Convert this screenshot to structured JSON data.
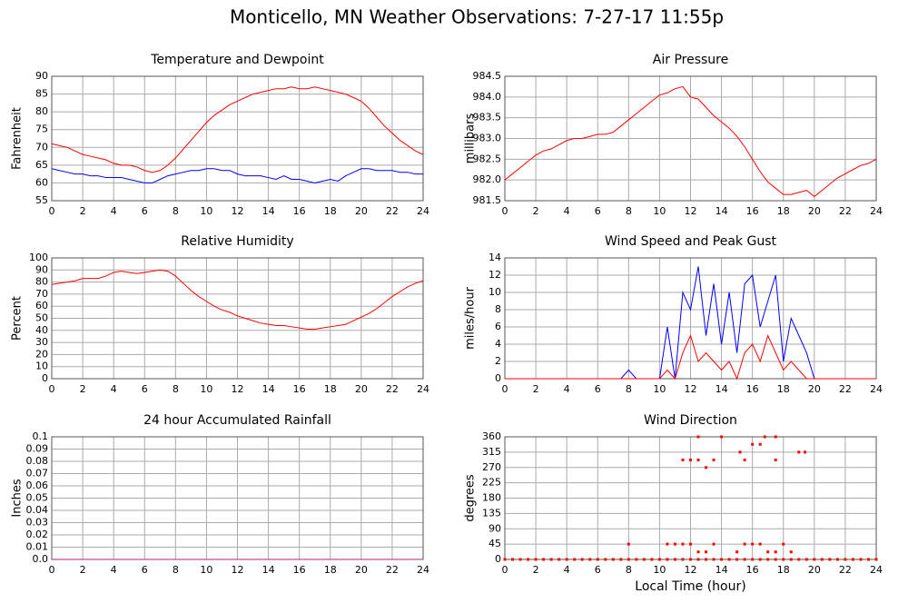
{
  "title": "Monticello, MN Weather Observations: 7-27-17 11:55p",
  "chart_data": [
    {
      "type": "line",
      "title": "Temperature and Dewpoint",
      "ylabel": "Fahrenheit",
      "xlim": [
        0,
        24
      ],
      "xticks": [
        0,
        2,
        4,
        6,
        8,
        10,
        12,
        14,
        16,
        18,
        20,
        22,
        24
      ],
      "ylim": [
        55,
        90
      ],
      "yticks": [
        55,
        60,
        65,
        70,
        75,
        80,
        85,
        90
      ],
      "grid": true,
      "x": [
        0,
        0.5,
        1,
        1.5,
        2,
        2.5,
        3,
        3.5,
        4,
        4.5,
        5,
        5.5,
        6,
        6.5,
        7,
        7.5,
        8,
        8.5,
        9,
        9.5,
        10,
        10.5,
        11,
        11.5,
        12,
        12.5,
        13,
        13.5,
        14,
        14.5,
        15,
        15.5,
        16,
        16.5,
        17,
        17.5,
        18,
        18.5,
        19,
        19.5,
        20,
        20.5,
        21,
        21.5,
        22,
        22.5,
        23,
        23.5,
        24
      ],
      "series": [
        {
          "color": "#ff0000",
          "values": [
            71,
            70.5,
            70,
            69,
            68,
            67.5,
            67,
            66.5,
            65.5,
            65,
            65,
            64.5,
            63.5,
            63,
            63.5,
            65,
            67,
            69.5,
            72,
            74.5,
            77,
            79,
            80.5,
            82,
            83,
            84,
            85,
            85.5,
            86,
            86.5,
            86.5,
            87,
            86.5,
            86.5,
            87,
            86.5,
            86,
            85.5,
            85,
            84,
            83,
            81,
            78.5,
            76,
            74,
            72,
            70.5,
            69,
            68
          ]
        },
        {
          "color": "#0000ff",
          "values": [
            64,
            63.5,
            63,
            62.5,
            62.5,
            62,
            62,
            61.5,
            61.5,
            61.5,
            61,
            60.5,
            60,
            60,
            61,
            62,
            62.5,
            63,
            63.5,
            63.5,
            64,
            64,
            63.5,
            63.5,
            62.5,
            62,
            62,
            62,
            61.5,
            61,
            62,
            61,
            61,
            60.5,
            60,
            60.5,
            61,
            60.5,
            62,
            63,
            64,
            64,
            63.5,
            63.5,
            63.5,
            63,
            63,
            62.5,
            62.5
          ]
        }
      ]
    },
    {
      "type": "line",
      "title": "Air Pressure",
      "ylabel": "millibars",
      "xlim": [
        0,
        24
      ],
      "xticks": [
        0,
        2,
        4,
        6,
        8,
        10,
        12,
        14,
        16,
        18,
        20,
        22,
        24
      ],
      "ylim": [
        981.5,
        984.5
      ],
      "yticks": [
        981.5,
        {
          "value": 982,
          "label": "982.0"
        },
        982.5,
        {
          "value": 983,
          "label": "983.0"
        },
        983.5,
        {
          "value": 984,
          "label": "984.0"
        },
        984.5
      ],
      "grid": true,
      "x": [
        0,
        0.5,
        1,
        1.5,
        2,
        2.5,
        3,
        3.5,
        4,
        4.5,
        5,
        5.5,
        6,
        6.5,
        7,
        7.5,
        8,
        8.5,
        9,
        9.5,
        10,
        10.5,
        11,
        11.5,
        12,
        12.5,
        13,
        13.5,
        14,
        14.5,
        15,
        15.5,
        16,
        16.5,
        17,
        17.5,
        18,
        18.5,
        19,
        19.5,
        20,
        20.5,
        21,
        21.5,
        22,
        22.5,
        23,
        23.5,
        24
      ],
      "series": [
        {
          "color": "#ff0000",
          "values": [
            982.0,
            982.15,
            982.3,
            982.45,
            982.6,
            982.7,
            982.75,
            982.85,
            982.95,
            983.0,
            983.0,
            983.05,
            983.1,
            983.1,
            983.15,
            983.3,
            983.45,
            983.6,
            983.75,
            983.9,
            984.05,
            984.1,
            984.2,
            984.25,
            984.0,
            983.95,
            983.75,
            983.55,
            983.4,
            983.25,
            983.05,
            982.8,
            982.5,
            982.2,
            981.95,
            981.8,
            981.65,
            981.65,
            981.7,
            981.75,
            981.6,
            981.75,
            981.9,
            982.05,
            982.15,
            982.25,
            982.35,
            982.4,
            982.5
          ]
        }
      ]
    },
    {
      "type": "line",
      "title": "Relative Humidity",
      "ylabel": "Percent",
      "xlim": [
        0,
        24
      ],
      "xticks": [
        0,
        2,
        4,
        6,
        8,
        10,
        12,
        14,
        16,
        18,
        20,
        22,
        24
      ],
      "ylim": [
        0,
        100
      ],
      "yticks": [
        0,
        10,
        20,
        30,
        40,
        50,
        60,
        70,
        80,
        90,
        100
      ],
      "grid": true,
      "x": [
        0,
        0.5,
        1,
        1.5,
        2,
        2.5,
        3,
        3.5,
        4,
        4.5,
        5,
        5.5,
        6,
        6.5,
        7,
        7.5,
        8,
        8.5,
        9,
        9.5,
        10,
        10.5,
        11,
        11.5,
        12,
        12.5,
        13,
        13.5,
        14,
        14.5,
        15,
        15.5,
        16,
        16.5,
        17,
        17.5,
        18,
        18.5,
        19,
        19.5,
        20,
        20.5,
        21,
        21.5,
        22,
        22.5,
        23,
        23.5,
        24
      ],
      "series": [
        {
          "color": "#ff0000",
          "values": [
            78,
            79,
            80,
            81,
            83,
            83,
            83,
            85,
            88,
            89,
            88,
            87,
            88,
            89,
            90,
            89,
            85,
            79,
            73,
            68,
            64,
            60,
            57,
            55,
            52,
            50,
            48,
            46,
            45,
            44,
            44,
            43,
            42,
            41,
            41,
            42,
            43,
            44,
            45,
            48,
            51,
            54,
            58,
            63,
            68,
            72,
            76,
            79,
            81
          ]
        }
      ]
    },
    {
      "type": "line",
      "title": "Wind Speed and Peak Gust",
      "ylabel": "miles/hour",
      "xlim": [
        0,
        24
      ],
      "xticks": [
        0,
        2,
        4,
        6,
        8,
        10,
        12,
        14,
        16,
        18,
        20,
        22,
        24
      ],
      "ylim": [
        0,
        14
      ],
      "yticks": [
        0,
        2,
        4,
        6,
        8,
        10,
        12,
        14
      ],
      "grid": true,
      "x": [
        0,
        0.5,
        1,
        1.5,
        2,
        2.5,
        3,
        3.5,
        4,
        4.5,
        5,
        5.5,
        6,
        6.5,
        7,
        7.5,
        8,
        8.5,
        9,
        9.5,
        10,
        10.5,
        11,
        11.5,
        12,
        12.5,
        13,
        13.5,
        14,
        14.5,
        15,
        15.5,
        16,
        16.5,
        17,
        17.5,
        18,
        18.5,
        19,
        19.5,
        20,
        20.5,
        21,
        21.5,
        22,
        22.5,
        23,
        23.5,
        24
      ],
      "series": [
        {
          "color": "#0000ff",
          "values": [
            0,
            0,
            0,
            0,
            0,
            0,
            0,
            0,
            0,
            0,
            0,
            0,
            0,
            0,
            0,
            0,
            1,
            0,
            0,
            0,
            0,
            6,
            0,
            10,
            8,
            13,
            5,
            11,
            4,
            10,
            3,
            11,
            12,
            6,
            9,
            12,
            2,
            7,
            5,
            3,
            0,
            0,
            0,
            0,
            0,
            0,
            0,
            0,
            0
          ]
        },
        {
          "color": "#ff0000",
          "values": [
            0,
            0,
            0,
            0,
            0,
            0,
            0,
            0,
            0,
            0,
            0,
            0,
            0,
            0,
            0,
            0,
            0,
            0,
            0,
            0,
            0,
            1,
            0,
            3,
            5,
            2,
            3,
            2,
            1,
            2,
            0,
            3,
            4,
            2,
            5,
            3,
            1,
            2,
            1,
            0,
            0,
            0,
            0,
            0,
            0,
            0,
            0,
            0,
            0
          ]
        }
      ]
    },
    {
      "type": "line",
      "title": "24 hour Accumulated Rainfall",
      "ylabel": "Inches",
      "xlim": [
        0,
        24
      ],
      "xticks": [
        0,
        2,
        4,
        6,
        8,
        10,
        12,
        14,
        16,
        18,
        20,
        22,
        24
      ],
      "ylim": [
        0,
        0.1
      ],
      "yticks": [
        {
          "value": 0,
          "label": "0.0"
        },
        0.01,
        0.02,
        0.03,
        0.04,
        0.05,
        0.06,
        0.07,
        0.08,
        0.09,
        0.1
      ],
      "grid": true,
      "x": [
        0,
        24
      ],
      "series": [
        {
          "color": "#b0207f",
          "values": [
            0,
            0
          ]
        }
      ]
    },
    {
      "type": "scatter",
      "title": "Wind Direction",
      "ylabel": "degrees",
      "xlabel": "Local Time (hour)",
      "xlim": [
        0,
        24
      ],
      "xticks": [
        0,
        2,
        4,
        6,
        8,
        10,
        12,
        14,
        16,
        18,
        20,
        22,
        24
      ],
      "ylim": [
        0,
        360
      ],
      "yticks": [
        0,
        45,
        90,
        135,
        180,
        225,
        270,
        315,
        360
      ],
      "grid": true,
      "color": "#ff0000",
      "x": [
        0,
        0.5,
        1,
        1.5,
        2,
        2.5,
        3,
        3.5,
        4,
        4.5,
        5,
        5.5,
        6,
        6.5,
        7,
        7.5,
        8,
        8.5,
        9,
        9.5,
        10,
        10.5,
        11,
        11.5,
        12,
        12.5,
        13,
        13.5,
        14,
        14.5,
        15,
        15.5,
        16,
        16.5,
        17,
        17.5,
        18,
        18.5,
        19,
        19.5,
        20,
        20.5,
        21,
        21.5,
        22,
        22.5,
        23,
        23.5,
        24,
        8,
        10.5,
        11,
        11.5,
        12,
        12.5,
        13,
        13.5,
        15,
        15.5,
        16,
        16.5,
        17,
        17.5,
        18,
        18.5,
        11.5,
        12,
        12.5,
        13,
        13.5,
        15.2,
        15.5,
        16,
        16.5,
        17.5,
        19,
        19.4,
        12.5,
        14,
        16.8,
        17.5
      ],
      "values": [
        0,
        0,
        0,
        0,
        0,
        0,
        0,
        0,
        0,
        0,
        0,
        0,
        0,
        0,
        0,
        0,
        0,
        0,
        0,
        0,
        0,
        0,
        0,
        0,
        0,
        0,
        0,
        0,
        0,
        0,
        0,
        0,
        0,
        0,
        0,
        0,
        0,
        0,
        0,
        0,
        0,
        0,
        0,
        0,
        0,
        0,
        0,
        0,
        0,
        45,
        45,
        45,
        45,
        45,
        22,
        22,
        45,
        22,
        45,
        45,
        45,
        22,
        22,
        45,
        22,
        292,
        292,
        292,
        270,
        292,
        315,
        292,
        338,
        338,
        292,
        315,
        315,
        360,
        360,
        360,
        360
      ]
    }
  ]
}
